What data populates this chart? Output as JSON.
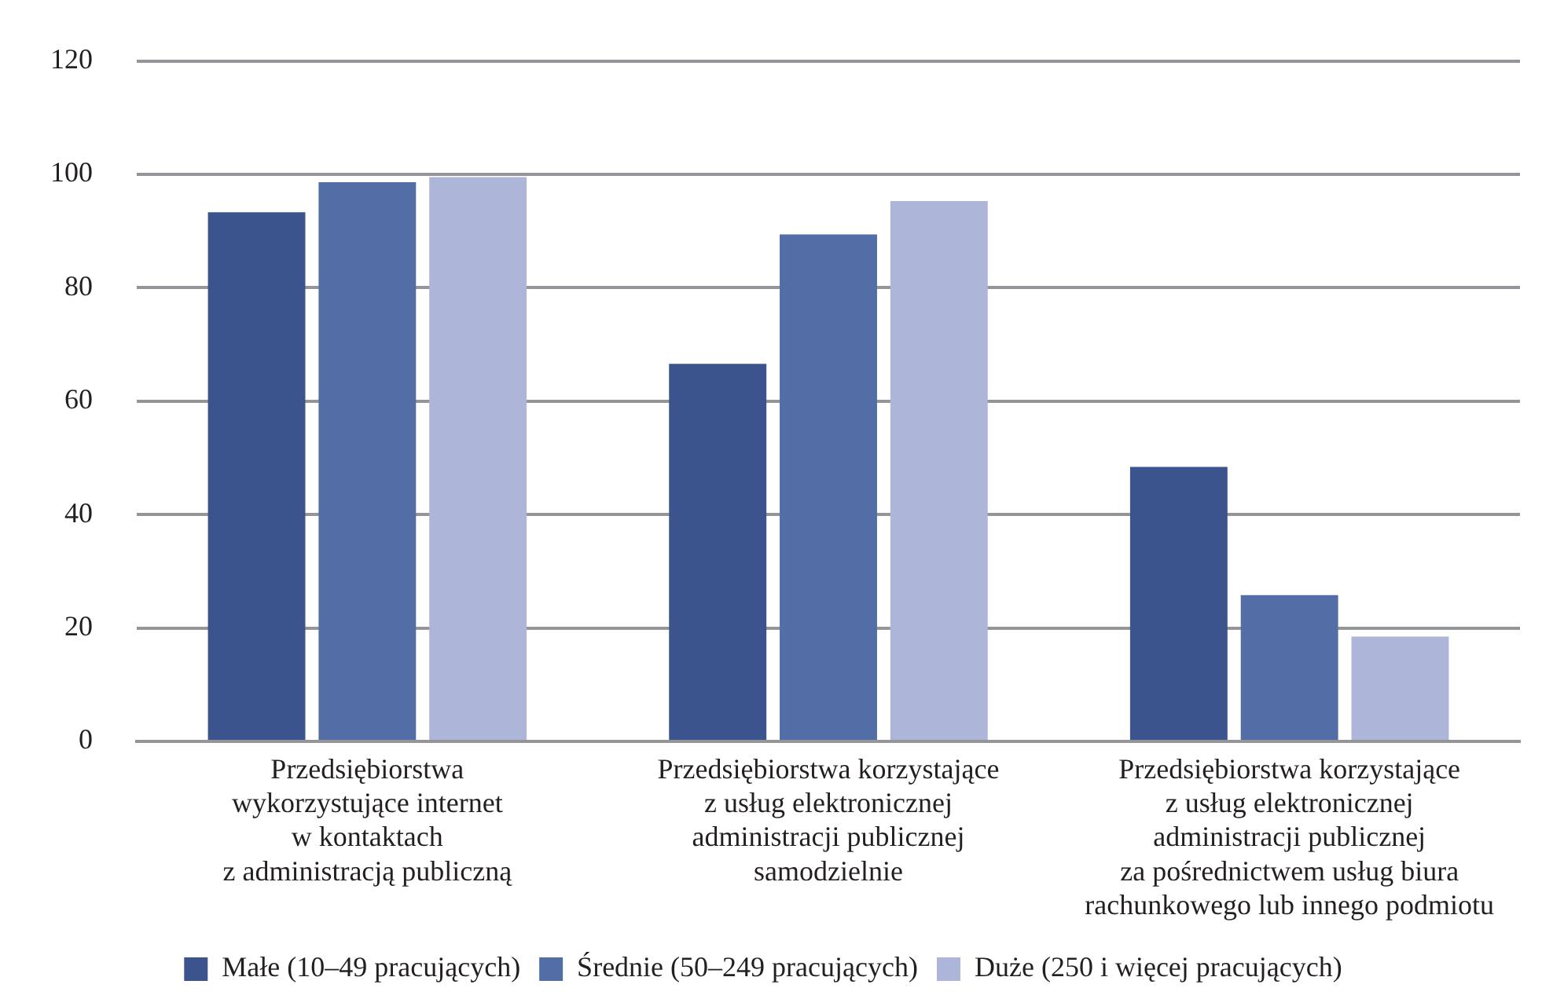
{
  "chart_data": {
    "type": "bar",
    "categories": [
      "Przedsiębiorstwa\nwykorzystujące internet\nw kontaktach\nz administracją publiczną",
      "Przedsiębiorstwa korzystające\nz usług elektronicznej\nadministracji publicznej\nsamodzielnie",
      "Przedsiębiorstwa korzystające\nz usług elektronicznej\nadministracji publicznej\nza pośrednictwem usług biura\nrachunkowego lub innego podmiotu"
    ],
    "series": [
      {
        "name": "Małe (10–49 pracujących)",
        "color": "#3c548e",
        "values": [
          93.3,
          66.6,
          48.4
        ]
      },
      {
        "name": "Średnie (50–249 pracujących)",
        "color": "#536da6",
        "values": [
          98.6,
          89.4,
          25.8
        ]
      },
      {
        "name": "Duże (250 i więcej pracujących)",
        "color": "#adb6d8",
        "values": [
          99.5,
          95.3,
          18.5
        ]
      }
    ],
    "ylim": [
      0,
      120
    ],
    "yticks": [
      0,
      20,
      40,
      60,
      80,
      100,
      120
    ],
    "grid": "y",
    "legend": "bottom"
  }
}
